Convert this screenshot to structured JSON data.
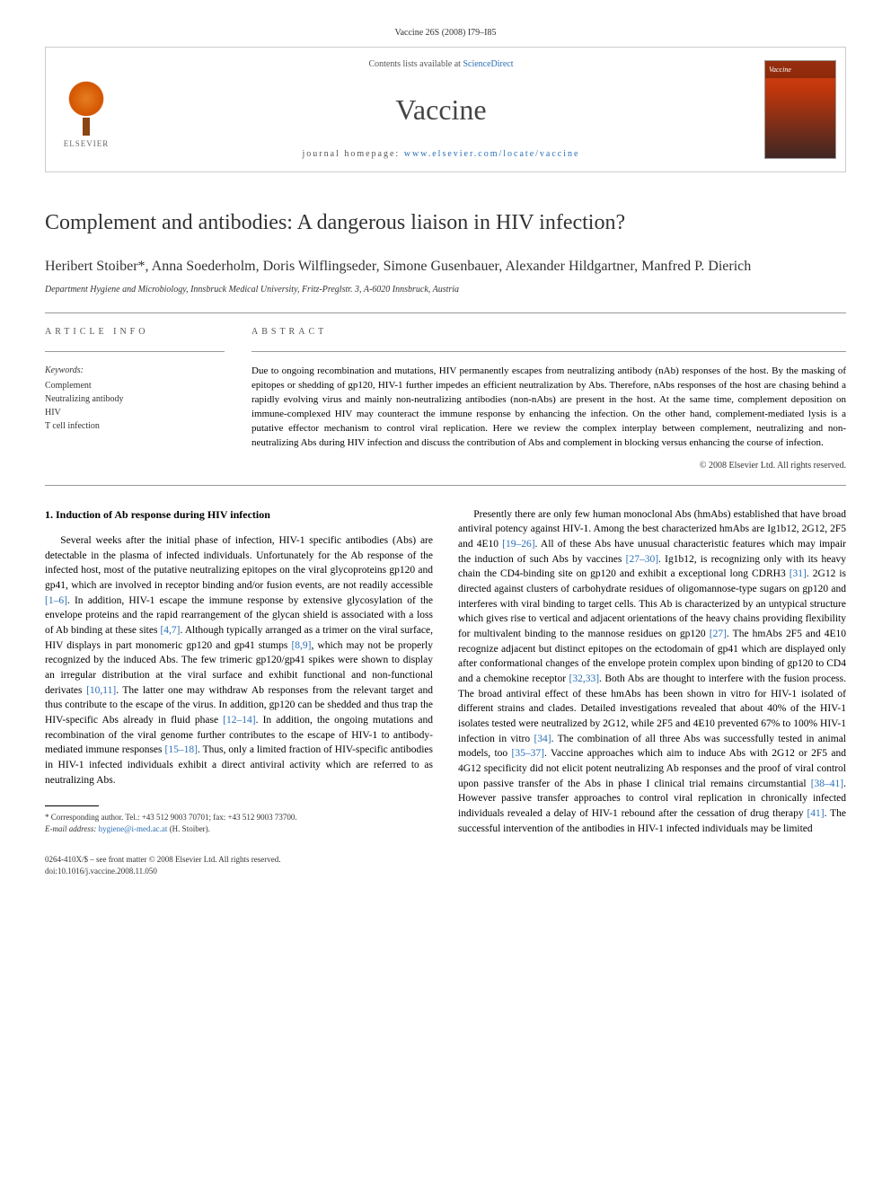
{
  "header": {
    "citation": "Vaccine 26S (2008) I79–I85"
  },
  "banner": {
    "contents_prefix": "Contents lists available at ",
    "contents_link": "ScienceDirect",
    "journal_name": "Vaccine",
    "homepage_prefix": "journal homepage: ",
    "homepage_url": "www.elsevier.com/locate/vaccine",
    "publisher_name": "ELSEVIER",
    "cover_label": "Vaccine"
  },
  "article": {
    "title": "Complement and antibodies: A dangerous liaison in HIV infection?",
    "authors_line": "Heribert Stoiber*, Anna Soederholm, Doris Wilflingseder, Simone Gusenbauer, Alexander Hildgartner, Manfred P. Dierich",
    "affiliation": "Department Hygiene and Microbiology, Innsbruck Medical University, Fritz-Preglstr. 3, A-6020 Innsbruck, Austria"
  },
  "info": {
    "heading": "ARTICLE INFO",
    "keywords_label": "Keywords:",
    "keywords": [
      "Complement",
      "Neutralizing antibody",
      "HIV",
      "T cell infection"
    ]
  },
  "abstract": {
    "heading": "ABSTRACT",
    "text": "Due to ongoing recombination and mutations, HIV permanently escapes from neutralizing antibody (nAb) responses of the host. By the masking of epitopes or shedding of gp120, HIV-1 further impedes an efficient neutralization by Abs. Therefore, nAbs responses of the host are chasing behind a rapidly evolving virus and mainly non-neutralizing antibodies (non-nAbs) are present in the host. At the same time, complement deposition on immune-complexed HIV may counteract the immune response by enhancing the infection. On the other hand, complement-mediated lysis is a putative effector mechanism to control viral replication. Here we review the complex interplay between complement, neutralizing and non-neutralizing Abs during HIV infection and discuss the contribution of Abs and complement in blocking versus enhancing the course of infection.",
    "copyright": "© 2008 Elsevier Ltd. All rights reserved."
  },
  "body": {
    "section1_heading": "1. Induction of Ab response during HIV infection",
    "col1_p1a": "Several weeks after the initial phase of infection, HIV-1 specific antibodies (Abs) are detectable in the plasma of infected individuals. Unfortunately for the Ab response of the infected host, most of the putative neutralizing epitopes on the viral glycoproteins gp120 and gp41, which are involved in receptor binding and/or fusion events, are not readily accessible ",
    "ref1": "[1–6]",
    "col1_p1b": ". In addition, HIV-1 escape the immune response by extensive glycosylation of the envelope proteins and the rapid rearrangement of the glycan shield is associated with a loss of Ab binding at these sites ",
    "ref2": "[4,7]",
    "col1_p1c": ". Although typically arranged as a trimer on the viral surface, HIV displays in part monomeric gp120 and gp41 stumps ",
    "ref3": "[8,9]",
    "col1_p1d": ", which may not be properly recognized by the induced Abs. The few trimeric gp120/gp41 spikes were shown to display an irregular distribution at the viral surface and exhibit functional and non-functional derivates ",
    "ref4": "[10,11]",
    "col1_p1e": ". The latter one may withdraw Ab responses from the relevant target and thus contribute to the escape of the virus. In addition, gp120 can be shedded and thus trap the HIV-specific Abs already in fluid phase ",
    "ref5": "[12–14]",
    "col1_p1f": ". In addition, the ongoing mutations and recombination of the viral genome further contributes to the escape of HIV-1 to antibody-mediated immune responses ",
    "ref6": "[15–18]",
    "col1_p1g": ". Thus, only a limited fraction of HIV-specific antibodies in HIV-1 infected individuals exhibit a direct antiviral activity which are referred to as neutralizing Abs.",
    "col2_p1a": "Presently there are only few human monoclonal Abs (hmAbs) established that have broad antiviral potency against HIV-1. Among the best characterized hmAbs are Ig1b12, 2G12, 2F5 and 4E10 ",
    "ref7": "[19–26]",
    "col2_p1b": ". All of these Abs have unusual characteristic features which may impair the induction of such Abs by vaccines ",
    "ref8": "[27–30]",
    "col2_p1c": ". Ig1b12, is recognizing only with its heavy chain the CD4-binding site on gp120 and exhibit a exceptional long CDRH3 ",
    "ref9": "[31]",
    "col2_p1d": ". 2G12 is directed against clusters of carbohydrate residues of oligomannose-type sugars on gp120 and interferes with viral binding to target cells. This Ab is characterized by an untypical structure which gives rise to vertical and adjacent orientations of the heavy chains providing flexibility for multivalent binding to the mannose residues on gp120 ",
    "ref10": "[27]",
    "col2_p1e": ". The hmAbs 2F5 and 4E10 recognize adjacent but distinct epitopes on the ectodomain of gp41 which are displayed only after conformational changes of the envelope protein complex upon binding of gp120 to CD4 and a chemokine receptor ",
    "ref11": "[32,33]",
    "col2_p1f": ". Both Abs are thought to interfere with the fusion process. The broad antiviral effect of these hmAbs has been shown in vitro for HIV-1 isolated of different strains and clades. Detailed investigations revealed that about 40% of the HIV-1 isolates tested were neutralized by 2G12, while 2F5 and 4E10 prevented 67% to 100% HIV-1 infection in vitro ",
    "ref12": "[34]",
    "col2_p1g": ". The combination of all three Abs was successfully tested in animal models, too ",
    "ref13": "[35–37]",
    "col2_p1h": ". Vaccine approaches which aim to induce Abs with 2G12 or 2F5 and 4G12 specificity did not elicit potent neutralizing Ab responses and the proof of viral control upon passive transfer of the Abs in phase I clinical trial remains circumstantial ",
    "ref14": "[38–41]",
    "col2_p1i": ". However passive transfer approaches to control viral replication in chronically infected individuals revealed a delay of HIV-1 rebound after the cessation of drug therapy ",
    "ref15": "[41]",
    "col2_p1j": ". The successful intervention of the antibodies in HIV-1 infected individuals may be limited"
  },
  "footnote": {
    "corr_text": "* Corresponding author. Tel.: +43 512 9003 70701; fax: +43 512 9003 73700.",
    "email_label": "E-mail address:",
    "email_value": "hygiene@i-med.ac.at",
    "email_who": "(H. Stoiber)."
  },
  "footer": {
    "issn_line": "0264-410X/$ – see front matter © 2008 Elsevier Ltd. All rights reserved.",
    "doi_line": "doi:10.1016/j.vaccine.2008.11.050"
  },
  "colors": {
    "link": "#2a6fb5",
    "text": "#000000",
    "muted": "#555555",
    "elsevier_orange": "#e67e22"
  }
}
